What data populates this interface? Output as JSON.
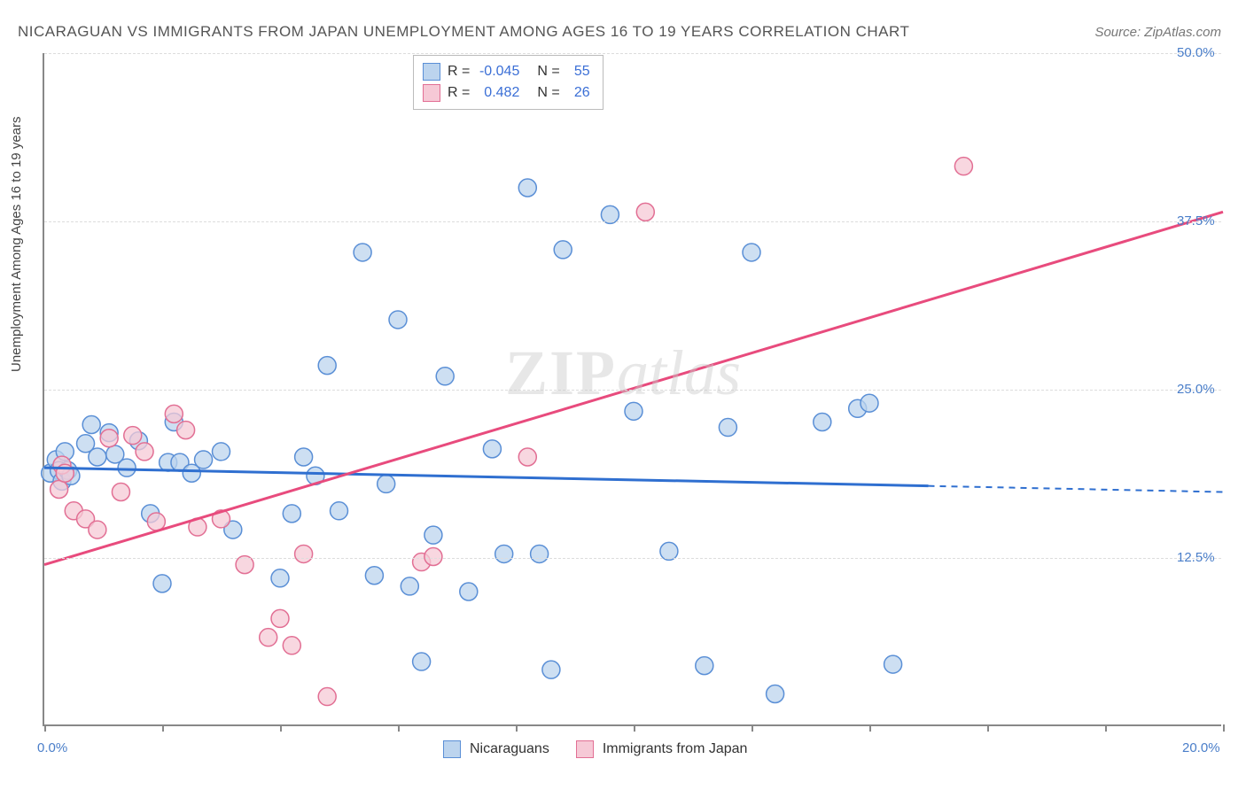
{
  "title": "NICARAGUAN VS IMMIGRANTS FROM JAPAN UNEMPLOYMENT AMONG AGES 16 TO 19 YEARS CORRELATION CHART",
  "source": "Source: ZipAtlas.com",
  "y_axis_title": "Unemployment Among Ages 16 to 19 years",
  "watermark_a": "ZIP",
  "watermark_b": "atlas",
  "chart": {
    "type": "scatter",
    "xlim": [
      0,
      20
    ],
    "ylim": [
      0,
      50
    ],
    "x_ticks": [
      0,
      2,
      4,
      6,
      8,
      10,
      12,
      14,
      16,
      18,
      20
    ],
    "y_gridlines": [
      12.5,
      25.0,
      37.5,
      50.0
    ],
    "x_labels": [
      {
        "v": 0,
        "t": "0.0%"
      },
      {
        "v": 20,
        "t": "20.0%"
      }
    ],
    "y_labels": [
      {
        "v": 12.5,
        "t": "12.5%"
      },
      {
        "v": 25.0,
        "t": "25.0%"
      },
      {
        "v": 37.5,
        "t": "37.5%"
      },
      {
        "v": 50.0,
        "t": "50.0%"
      }
    ],
    "background_color": "#ffffff",
    "grid_color": "#dddddd",
    "axis_color": "#888888",
    "marker_radius": 10,
    "marker_stroke_width": 1.5,
    "line_width": 3,
    "series": [
      {
        "name": "Nicaraguans",
        "fill": "#bcd4ee",
        "stroke": "#5a8fd6",
        "line_color": "#2f6fd0",
        "R": "-0.045",
        "N": "55",
        "trend": {
          "x1": 0,
          "y1": 19.2,
          "x2": 20,
          "y2": 17.4,
          "solid_until_x": 15.0
        },
        "points": [
          [
            0.1,
            18.8
          ],
          [
            0.2,
            19.8
          ],
          [
            0.25,
            19.0
          ],
          [
            0.3,
            18.2
          ],
          [
            0.35,
            20.4
          ],
          [
            0.4,
            19.0
          ],
          [
            0.45,
            18.6
          ],
          [
            0.7,
            21.0
          ],
          [
            0.8,
            22.4
          ],
          [
            0.9,
            20.0
          ],
          [
            1.1,
            21.8
          ],
          [
            1.2,
            20.2
          ],
          [
            1.4,
            19.2
          ],
          [
            1.6,
            21.2
          ],
          [
            1.8,
            15.8
          ],
          [
            2.0,
            10.6
          ],
          [
            2.1,
            19.6
          ],
          [
            2.2,
            22.6
          ],
          [
            2.3,
            19.6
          ],
          [
            2.5,
            18.8
          ],
          [
            2.7,
            19.8
          ],
          [
            3.0,
            20.4
          ],
          [
            3.2,
            14.6
          ],
          [
            4.0,
            11.0
          ],
          [
            4.2,
            15.8
          ],
          [
            4.4,
            20.0
          ],
          [
            4.6,
            18.6
          ],
          [
            4.8,
            26.8
          ],
          [
            5.0,
            16.0
          ],
          [
            5.4,
            35.2
          ],
          [
            5.6,
            11.2
          ],
          [
            5.8,
            18.0
          ],
          [
            6.0,
            30.2
          ],
          [
            6.2,
            10.4
          ],
          [
            6.4,
            4.8
          ],
          [
            6.6,
            14.2
          ],
          [
            6.8,
            26.0
          ],
          [
            7.2,
            10.0
          ],
          [
            7.6,
            20.6
          ],
          [
            7.8,
            12.8
          ],
          [
            8.2,
            40.0
          ],
          [
            8.4,
            12.8
          ],
          [
            8.6,
            4.2
          ],
          [
            8.8,
            35.4
          ],
          [
            9.6,
            38.0
          ],
          [
            10.0,
            23.4
          ],
          [
            10.6,
            13.0
          ],
          [
            11.2,
            4.5
          ],
          [
            11.6,
            22.2
          ],
          [
            12.0,
            35.2
          ],
          [
            12.4,
            2.4
          ],
          [
            13.2,
            22.6
          ],
          [
            13.8,
            23.6
          ],
          [
            14.0,
            24.0
          ],
          [
            14.4,
            4.6
          ]
        ]
      },
      {
        "name": "Immigrants from Japan",
        "fill": "#f6c9d6",
        "stroke": "#e26f94",
        "line_color": "#e84b7d",
        "R": "0.482",
        "N": "26",
        "trend": {
          "x1": 0,
          "y1": 12.0,
          "x2": 20,
          "y2": 38.2,
          "solid_until_x": 20
        },
        "points": [
          [
            0.25,
            17.6
          ],
          [
            0.3,
            19.4
          ],
          [
            0.35,
            18.8
          ],
          [
            0.5,
            16.0
          ],
          [
            0.7,
            15.4
          ],
          [
            0.9,
            14.6
          ],
          [
            1.1,
            21.4
          ],
          [
            1.3,
            17.4
          ],
          [
            1.5,
            21.6
          ],
          [
            1.7,
            20.4
          ],
          [
            1.9,
            15.2
          ],
          [
            2.2,
            23.2
          ],
          [
            2.4,
            22.0
          ],
          [
            2.6,
            14.8
          ],
          [
            3.0,
            15.4
          ],
          [
            3.4,
            12.0
          ],
          [
            3.8,
            6.6
          ],
          [
            4.0,
            8.0
          ],
          [
            4.2,
            6.0
          ],
          [
            4.4,
            12.8
          ],
          [
            4.8,
            2.2
          ],
          [
            6.4,
            12.2
          ],
          [
            6.6,
            12.6
          ],
          [
            8.2,
            20.0
          ],
          [
            10.2,
            38.2
          ],
          [
            15.6,
            41.6
          ]
        ]
      }
    ]
  },
  "legend_top": [
    {
      "swatch_fill": "#bcd4ee",
      "swatch_stroke": "#5a8fd6",
      "R": "-0.045",
      "N": "55"
    },
    {
      "swatch_fill": "#f6c9d6",
      "swatch_stroke": "#e26f94",
      "R": "0.482",
      "N": "26"
    }
  ],
  "legend_bottom": [
    {
      "swatch_fill": "#bcd4ee",
      "swatch_stroke": "#5a8fd6",
      "label": "Nicaraguans"
    },
    {
      "swatch_fill": "#f6c9d6",
      "swatch_stroke": "#e26f94",
      "label": "Immigrants from Japan"
    }
  ]
}
